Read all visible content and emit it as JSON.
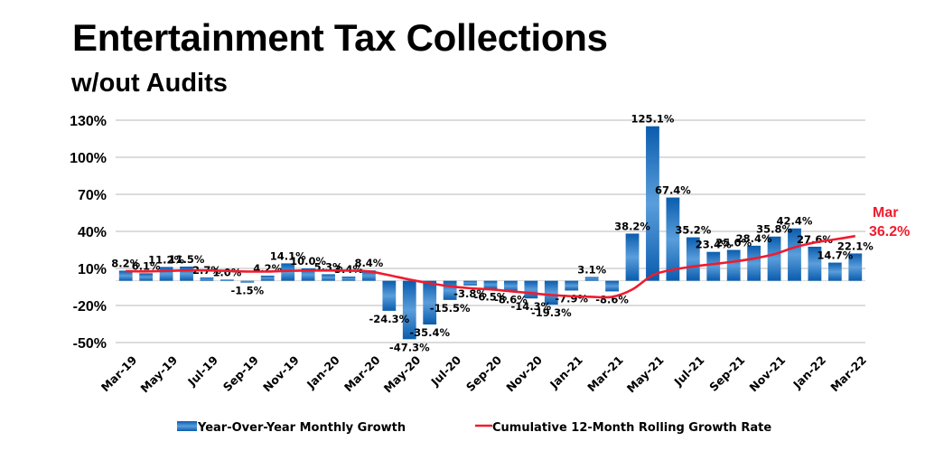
{
  "chart_data": {
    "type": "bar",
    "title": "Entertainment Tax Collections",
    "subtitle": "w/out Audits",
    "xlabel": "",
    "ylabel": "",
    "ylim": [
      -50,
      130
    ],
    "yticks": [
      130,
      100,
      70,
      40,
      10,
      -20,
      -50
    ],
    "ytick_labels": [
      "130%",
      "100%",
      "70%",
      "40%",
      "10%",
      "-20%",
      "-50%"
    ],
    "grid": true,
    "categories": [
      "Mar-19",
      "Apr-19",
      "May-19",
      "Jun-19",
      "Jul-19",
      "Aug-19",
      "Sep-19",
      "Oct-19",
      "Nov-19",
      "Dec-19",
      "Jan-20",
      "Feb-20",
      "Mar-20",
      "Apr-20",
      "May-20",
      "Jun-20",
      "Jul-20",
      "Aug-20",
      "Sep-20",
      "Oct-20",
      "Nov-20",
      "Dec-20",
      "Jan-21",
      "Feb-21",
      "Mar-21",
      "Apr-21",
      "May-21",
      "Jun-21",
      "Jul-21",
      "Aug-21",
      "Sep-21",
      "Oct-21",
      "Nov-21",
      "Dec-21",
      "Jan-22",
      "Feb-22",
      "Mar-22"
    ],
    "xtick_labels": [
      "Mar-19",
      "May-19",
      "Jul-19",
      "Sep-19",
      "Nov-19",
      "Jan-20",
      "Mar-20",
      "May-20",
      "Jul-20",
      "Sep-20",
      "Nov-20",
      "Jan-21",
      "Mar-21",
      "May-21",
      "Jul-21",
      "Sep-21",
      "Nov-21",
      "Jan-22",
      "Mar-22"
    ],
    "series": [
      {
        "name": "Year-Over-Year Monthly Growth",
        "type": "bar",
        "color": "#1f6fbf",
        "values": [
          8.2,
          6.1,
          11.2,
          11.5,
          2.7,
          1.0,
          -1.5,
          4.2,
          14.1,
          10.0,
          5.3,
          3.4,
          8.4,
          -24.3,
          -47.3,
          -35.4,
          -15.5,
          -3.8,
          -6.5,
          -8.6,
          -14.3,
          -19.3,
          -7.9,
          3.1,
          -8.6,
          38.2,
          125.1,
          67.4,
          35.2,
          23.4,
          25.0,
          28.4,
          35.8,
          42.4,
          27.6,
          14.7,
          22.1
        ],
        "labels": [
          "8.2%",
          "6.1%",
          "11.2%",
          "11.5%",
          "2.7%",
          "1.0%",
          "-1.5%",
          "4.2%",
          "14.1%",
          "10.0%",
          "5.3%",
          "3.4%",
          "8.4%",
          "-24.3%",
          "-47.3%",
          "-35.4%",
          "-15.5%",
          "-3.8%",
          "-6.5%",
          "-8.6%",
          "-14.3%",
          "-19.3%",
          "-7.9%",
          "3.1%",
          "-8.6%",
          "38.2%",
          "125.1%",
          "67.4%",
          "35.2%",
          "23.4%",
          "25.0%",
          "28.4%",
          "35.8%",
          "42.4%",
          "27.6%",
          "14.7%",
          "22.1%"
        ]
      },
      {
        "name": "Cumulative 12-Month Rolling Growth Rate",
        "type": "line",
        "color": "#ee1c2e",
        "values": [
          7.8,
          7.6,
          8.0,
          8.4,
          8.4,
          8.0,
          7.5,
          7.5,
          8.0,
          8.3,
          8.3,
          8.2,
          7.6,
          4.5,
          1.0,
          -2.0,
          -4.5,
          -6.0,
          -7.0,
          -8.5,
          -10.0,
          -11.5,
          -12.5,
          -13.0,
          -13.0,
          -7.0,
          4.5,
          9.0,
          11.5,
          13.5,
          15.5,
          18.0,
          21.5,
          27.0,
          31.0,
          33.5,
          36.2
        ]
      }
    ],
    "end_annotation": {
      "month": "Mar",
      "value_label": "36.2%"
    },
    "legend": {
      "position": "bottom",
      "items": [
        "Year-Over-Year Monthly Growth",
        "Cumulative 12-Month Rolling Growth Rate"
      ]
    }
  }
}
